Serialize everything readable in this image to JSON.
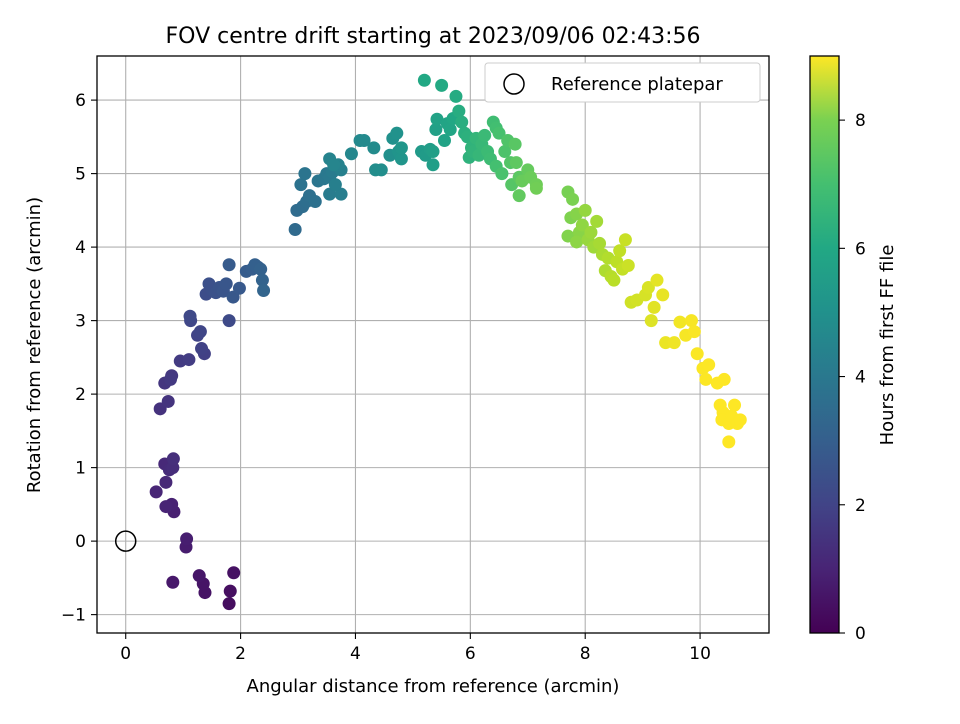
{
  "chart_data": {
    "type": "scatter",
    "title": "FOV centre drift starting at 2023/09/06 02:43:56",
    "xlabel": "Angular distance from reference (arcmin)",
    "ylabel": "Rotation from reference (arcmin)",
    "xlim": [
      -0.5,
      11.2
    ],
    "ylim": [
      -1.25,
      6.6
    ],
    "xticks": [
      0,
      2,
      4,
      6,
      8,
      10
    ],
    "yticks": [
      -1,
      0,
      1,
      2,
      3,
      4,
      5,
      6
    ],
    "grid": true,
    "legend": {
      "location": "upper right",
      "entries": [
        "Reference platepar"
      ]
    },
    "reference_point": {
      "x": 0,
      "y": 0,
      "label": "Reference platepar"
    },
    "colorbar": {
      "label": "Hours from first FF file",
      "range": [
        0,
        9
      ],
      "ticks": [
        0,
        2,
        4,
        6,
        8
      ],
      "colormap": "viridis"
    },
    "points": [
      [
        1.8,
        -0.85,
        0.3
      ],
      [
        1.82,
        -0.68,
        0.35
      ],
      [
        1.88,
        -0.43,
        0.4
      ],
      [
        1.38,
        -0.7,
        0.45
      ],
      [
        1.35,
        -0.58,
        0.5
      ],
      [
        1.28,
        -0.47,
        0.55
      ],
      [
        0.82,
        -0.56,
        0.6
      ],
      [
        1.05,
        -0.08,
        0.7
      ],
      [
        1.06,
        0.03,
        0.75
      ],
      [
        0.84,
        0.4,
        0.8
      ],
      [
        0.8,
        0.5,
        0.85
      ],
      [
        0.7,
        0.47,
        0.9
      ],
      [
        0.53,
        0.67,
        0.95
      ],
      [
        0.7,
        0.8,
        1.0
      ],
      [
        0.68,
        1.05,
        1.05
      ],
      [
        0.76,
        0.97,
        1.1
      ],
      [
        0.82,
        1.0,
        1.15
      ],
      [
        0.83,
        1.12,
        1.2
      ],
      [
        0.6,
        1.8,
        1.3
      ],
      [
        0.74,
        1.9,
        1.35
      ],
      [
        0.68,
        2.15,
        1.4
      ],
      [
        0.8,
        2.25,
        1.45
      ],
      [
        0.78,
        2.2,
        1.5
      ],
      [
        0.95,
        2.45,
        1.55
      ],
      [
        1.1,
        2.47,
        1.6
      ],
      [
        1.37,
        2.55,
        1.7
      ],
      [
        1.32,
        2.62,
        1.75
      ],
      [
        1.25,
        2.8,
        1.8
      ],
      [
        1.3,
        2.85,
        1.85
      ],
      [
        1.13,
        3.0,
        1.9
      ],
      [
        1.12,
        3.06,
        1.95
      ],
      [
        1.8,
        3.0,
        2.0
      ],
      [
        1.4,
        3.36,
        2.1
      ],
      [
        1.5,
        3.42,
        2.15
      ],
      [
        1.45,
        3.5,
        2.2
      ],
      [
        1.57,
        3.38,
        2.25
      ],
      [
        1.63,
        3.45,
        2.3
      ],
      [
        1.7,
        3.4,
        2.35
      ],
      [
        1.75,
        3.5,
        2.4
      ],
      [
        1.87,
        3.32,
        2.45
      ],
      [
        1.98,
        3.44,
        2.5
      ],
      [
        1.8,
        3.76,
        2.55
      ],
      [
        2.1,
        3.67,
        2.6
      ],
      [
        2.2,
        3.7,
        2.65
      ],
      [
        2.3,
        3.73,
        2.7
      ],
      [
        2.25,
        3.76,
        2.75
      ],
      [
        2.35,
        3.7,
        2.8
      ],
      [
        2.38,
        3.55,
        2.85
      ],
      [
        2.4,
        3.41,
        2.9
      ],
      [
        2.95,
        4.24,
        3.1
      ],
      [
        2.98,
        4.5,
        3.15
      ],
      [
        3.08,
        4.55,
        3.2
      ],
      [
        3.15,
        4.62,
        3.25
      ],
      [
        3.2,
        4.7,
        3.3
      ],
      [
        3.3,
        4.62,
        3.35
      ],
      [
        3.05,
        4.85,
        3.4
      ],
      [
        3.12,
        5.0,
        3.45
      ],
      [
        3.35,
        4.9,
        3.5
      ],
      [
        3.45,
        4.93,
        3.55
      ],
      [
        3.5,
        5.0,
        3.6
      ],
      [
        3.55,
        4.95,
        3.65
      ],
      [
        3.6,
        5.02,
        3.7
      ],
      [
        3.55,
        4.72,
        3.75
      ],
      [
        3.75,
        4.72,
        3.8
      ],
      [
        3.65,
        4.85,
        3.85
      ],
      [
        3.75,
        5.05,
        3.9
      ],
      [
        3.7,
        5.12,
        3.95
      ],
      [
        3.55,
        5.2,
        4.0
      ],
      [
        3.62,
        5.12,
        4.05
      ],
      [
        3.93,
        5.27,
        4.15
      ],
      [
        4.08,
        5.45,
        4.2
      ],
      [
        4.15,
        5.45,
        4.25
      ],
      [
        4.32,
        5.35,
        4.3
      ],
      [
        4.35,
        5.05,
        4.35
      ],
      [
        4.45,
        5.05,
        4.4
      ],
      [
        4.6,
        5.25,
        4.45
      ],
      [
        4.65,
        5.48,
        4.5
      ],
      [
        4.72,
        5.55,
        4.55
      ],
      [
        4.75,
        5.3,
        4.6
      ],
      [
        4.8,
        5.2,
        4.65
      ],
      [
        4.8,
        5.35,
        4.7
      ],
      [
        5.15,
        5.3,
        4.85
      ],
      [
        5.22,
        5.25,
        4.9
      ],
      [
        5.3,
        5.33,
        4.95
      ],
      [
        5.35,
        5.12,
        5.0
      ],
      [
        5.35,
        5.3,
        5.05
      ],
      [
        5.4,
        5.6,
        5.1
      ],
      [
        5.42,
        5.74,
        5.15
      ],
      [
        5.55,
        5.45,
        5.2
      ],
      [
        5.6,
        5.68,
        5.25
      ],
      [
        5.65,
        5.6,
        5.3
      ],
      [
        5.7,
        5.75,
        5.35
      ],
      [
        5.2,
        6.27,
        5.4
      ],
      [
        5.5,
        6.2,
        5.45
      ],
      [
        5.75,
        6.05,
        5.5
      ],
      [
        5.8,
        5.85,
        5.55
      ],
      [
        5.85,
        5.7,
        5.6
      ],
      [
        5.9,
        5.55,
        5.65
      ],
      [
        5.95,
        5.5,
        5.7
      ],
      [
        5.98,
        5.22,
        5.75
      ],
      [
        6.02,
        5.35,
        5.8
      ],
      [
        6.05,
        5.3,
        5.85
      ],
      [
        6.1,
        5.48,
        5.9
      ],
      [
        6.15,
        5.25,
        5.95
      ],
      [
        6.2,
        5.4,
        6.0
      ],
      [
        6.25,
        5.52,
        6.05
      ],
      [
        6.3,
        5.3,
        6.1
      ],
      [
        6.35,
        5.2,
        6.15
      ],
      [
        6.4,
        5.7,
        6.2
      ],
      [
        6.45,
        5.62,
        6.25
      ],
      [
        6.45,
        5.1,
        6.3
      ],
      [
        6.5,
        5.55,
        6.35
      ],
      [
        6.55,
        5.0,
        6.4
      ],
      [
        6.6,
        5.3,
        6.45
      ],
      [
        6.65,
        5.45,
        6.5
      ],
      [
        6.7,
        5.15,
        6.55
      ],
      [
        6.72,
        4.85,
        6.6
      ],
      [
        6.78,
        5.4,
        6.65
      ],
      [
        6.85,
        4.95,
        6.7
      ],
      [
        6.8,
        5.15,
        6.75
      ],
      [
        6.85,
        4.7,
        6.8
      ],
      [
        7.0,
        5.05,
        6.85
      ],
      [
        6.9,
        4.9,
        6.9
      ],
      [
        7.05,
        4.95,
        6.95
      ],
      [
        7.15,
        4.85,
        7.0
      ],
      [
        7.15,
        4.8,
        7.05
      ],
      [
        7.7,
        4.75,
        7.15
      ],
      [
        7.78,
        4.65,
        7.2
      ],
      [
        7.75,
        4.4,
        7.25
      ],
      [
        7.7,
        4.15,
        7.3
      ],
      [
        7.85,
        4.45,
        7.35
      ],
      [
        7.9,
        4.2,
        7.4
      ],
      [
        7.85,
        4.07,
        7.45
      ],
      [
        7.95,
        4.3,
        7.5
      ],
      [
        8.0,
        4.5,
        7.55
      ],
      [
        8.05,
        4.1,
        7.6
      ],
      [
        8.1,
        4.2,
        7.65
      ],
      [
        8.15,
        4.0,
        7.7
      ],
      [
        8.2,
        4.35,
        7.75
      ],
      [
        8.25,
        4.05,
        7.8
      ],
      [
        8.3,
        3.9,
        7.85
      ],
      [
        8.35,
        3.68,
        7.9
      ],
      [
        8.4,
        3.85,
        7.95
      ],
      [
        8.45,
        3.6,
        8.0
      ],
      [
        8.5,
        3.55,
        8.05
      ],
      [
        8.55,
        3.8,
        8.1
      ],
      [
        8.6,
        3.95,
        8.15
      ],
      [
        8.65,
        3.7,
        8.2
      ],
      [
        8.7,
        4.1,
        8.25
      ],
      [
        8.75,
        3.75,
        8.3
      ],
      [
        8.8,
        3.25,
        8.35
      ],
      [
        8.9,
        3.28,
        8.4
      ],
      [
        9.05,
        3.35,
        8.45
      ],
      [
        9.1,
        3.45,
        8.5
      ],
      [
        9.15,
        3.0,
        8.55
      ],
      [
        9.2,
        3.18,
        8.6
      ],
      [
        9.25,
        3.55,
        8.65
      ],
      [
        9.35,
        3.35,
        8.7
      ],
      [
        9.4,
        2.7,
        8.75
      ],
      [
        9.55,
        2.7,
        8.8
      ],
      [
        9.65,
        2.98,
        8.85
      ],
      [
        9.75,
        2.8,
        8.9
      ],
      [
        9.85,
        3.0,
        8.92
      ],
      [
        9.9,
        2.85,
        8.94
      ],
      [
        9.95,
        2.55,
        8.96
      ],
      [
        10.05,
        2.35,
        8.97
      ],
      [
        10.1,
        2.2,
        8.98
      ],
      [
        10.15,
        2.4,
        8.99
      ],
      [
        10.3,
        2.15,
        9.0
      ],
      [
        10.42,
        2.2,
        9.0
      ],
      [
        10.35,
        1.85,
        9.0
      ],
      [
        10.4,
        1.75,
        9.0
      ],
      [
        10.38,
        1.65,
        9.0
      ],
      [
        10.5,
        1.6,
        9.0
      ],
      [
        10.55,
        1.7,
        9.0
      ],
      [
        10.6,
        1.85,
        9.0
      ],
      [
        10.65,
        1.6,
        9.0
      ],
      [
        10.7,
        1.65,
        9.0
      ],
      [
        10.5,
        1.35,
        9.0
      ]
    ]
  }
}
